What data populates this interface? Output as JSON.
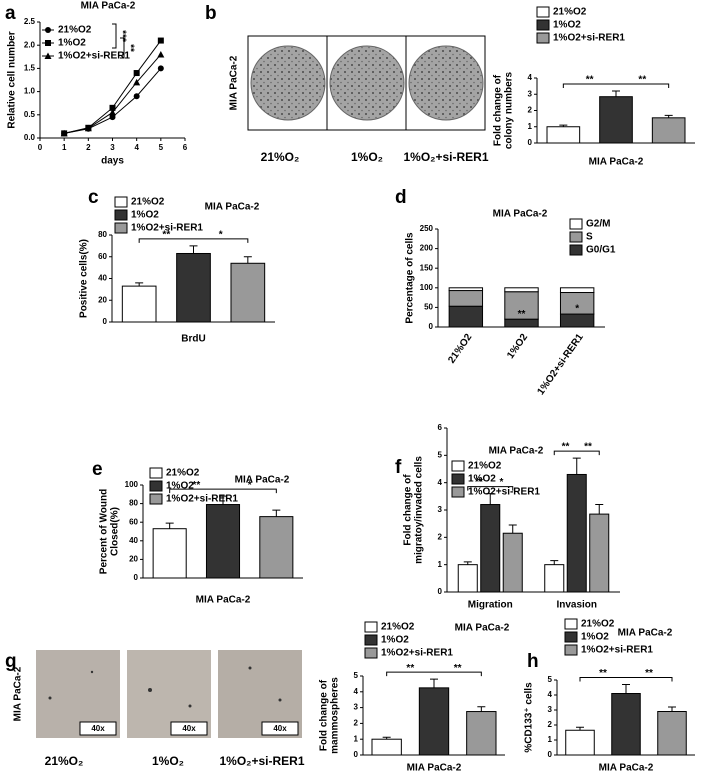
{
  "chart_data": [
    {
      "type": "line",
      "label": "a",
      "title": "MIA PaCa-2",
      "xlabel": "days",
      "ylabel": [
        "Relative cell number"
      ],
      "x": [
        1,
        2,
        3,
        4,
        5
      ],
      "series": [
        {
          "name": "21%O2",
          "marker": "circle",
          "color": "#000000",
          "values": [
            0.1,
            0.2,
            0.45,
            0.9,
            1.5
          ]
        },
        {
          "name": "1%O2",
          "marker": "square",
          "color": "#000000",
          "values": [
            0.1,
            0.22,
            0.65,
            1.4,
            2.1
          ]
        },
        {
          "name": "1%O2+si-RER1",
          "marker": "triangle",
          "color": "#000000",
          "values": [
            0.1,
            0.21,
            0.55,
            1.2,
            1.8
          ]
        }
      ],
      "xlim": [
        0,
        6
      ],
      "xticks": [
        0,
        1,
        2,
        3,
        4,
        5,
        6
      ],
      "ylim": [
        0,
        2.5
      ],
      "yticks": [
        {
          "value": 0,
          "label": "0.0"
        },
        0.5,
        {
          "value": 1,
          "label": "1.0"
        },
        1.5,
        {
          "value": 2,
          "label": "2.0"
        },
        2.5
      ],
      "annotations": [
        "***",
        "**"
      ]
    },
    {
      "type": "bar",
      "label": "b",
      "xlabel": "MIA PaCa-2",
      "ylabel": [
        "Fold change of",
        "colony numbers"
      ],
      "side_label": "MIA PaCa-2",
      "image_labels": [
        "21%O₂",
        "1%O₂",
        "1%O₂+si-RER1"
      ],
      "categories": [
        "21%O2",
        "1%O2",
        "1%O2+si-RER1"
      ],
      "colors": [
        "#ffffff",
        "#333333",
        "#999999"
      ],
      "values": [
        1,
        2.85,
        1.55
      ],
      "errors": [
        0.1,
        0.35,
        0.15
      ],
      "ylim": [
        0,
        4
      ],
      "yticks": [
        0,
        1,
        2,
        3,
        4
      ],
      "significance": [
        "**",
        "**"
      ]
    },
    {
      "type": "bar",
      "label": "c",
      "title": "MIA PaCa-2",
      "xlabel": "BrdU",
      "ylabel": [
        "Positive cells(%)"
      ],
      "categories": [
        "21%O2",
        "1%O2",
        "1%O2+si-RER1"
      ],
      "colors": [
        "#ffffff",
        "#333333",
        "#999999"
      ],
      "values": [
        33,
        63,
        54
      ],
      "errors": [
        3,
        7,
        6
      ],
      "ylim": [
        0,
        80
      ],
      "yticks": [
        0,
        20,
        40,
        60,
        80
      ],
      "significance": [
        "**",
        "*"
      ]
    },
    {
      "type": "stacked_bar",
      "label": "d",
      "title": "MIA PaCa-2",
      "ylabel": [
        "Percentage of cells"
      ],
      "categories": [
        "21%O2",
        "1%O2",
        "1%O2+si-RER1"
      ],
      "series": [
        {
          "name": "G0/G1",
          "color": "#333333",
          "values": [
            53,
            20,
            33
          ]
        },
        {
          "name": "S",
          "color": "#999999",
          "values": [
            40,
            70,
            55
          ]
        },
        {
          "name": "G2/M",
          "color": "#ffffff",
          "values": [
            7,
            10,
            12
          ]
        }
      ],
      "ylim": [
        0,
        250
      ],
      "yticks": [
        0,
        50,
        100,
        150,
        200,
        250
      ],
      "annotations": [
        "**",
        "*"
      ]
    },
    {
      "type": "bar",
      "label": "e",
      "title": "MIA PaCa-2",
      "xlabel": "MIA PaCa-2",
      "ylabel": [
        "Percent of Wound",
        "Closed(%)"
      ],
      "categories": [
        "21%O2",
        "1%O2",
        "1%O2+si-RER1"
      ],
      "colors": [
        "#ffffff",
        "#333333",
        "#999999"
      ],
      "values": [
        53,
        79,
        66
      ],
      "errors": [
        6,
        9,
        7
      ],
      "ylim": [
        0,
        100
      ],
      "yticks": [
        0,
        20,
        40,
        60,
        80,
        100
      ],
      "significance": [
        "**",
        "*"
      ]
    },
    {
      "type": "grouped_bar",
      "label": "f",
      "title": "MIA PaCa-2",
      "ylabel": [
        "Fold change of",
        "migratoy/invaded cells"
      ],
      "categories": [
        "Migration",
        "Invasion"
      ],
      "series": [
        {
          "name": "21%O2",
          "color": "#ffffff",
          "values": [
            1,
            1
          ],
          "errors": [
            0.1,
            0.15
          ]
        },
        {
          "name": "1%O2",
          "color": "#333333",
          "values": [
            3.2,
            4.3
          ],
          "errors": [
            0.4,
            0.6
          ]
        },
        {
          "name": "1%O2+si-RER1",
          "color": "#999999",
          "values": [
            2.15,
            2.85
          ],
          "errors": [
            0.3,
            0.35
          ]
        }
      ],
      "ylim": [
        0,
        6
      ],
      "yticks": [
        0,
        1,
        2,
        3,
        4,
        5,
        6
      ],
      "significance": [
        [
          "**",
          "*"
        ],
        [
          "**",
          "**"
        ]
      ]
    },
    {
      "type": "bar",
      "label": "g",
      "title": "MIA PaCa-2",
      "xlabel": "MIA PaCa-2",
      "ylabel": [
        "Fold change of",
        "mammospheres"
      ],
      "side_label": "MIA PaCa-2",
      "image_labels": [
        "21%O₂",
        "1%O₂",
        "1%O₂+si-RER1"
      ],
      "magnification": "40x",
      "categories": [
        "21%O2",
        "1%O2",
        "1%O2+si-RER1"
      ],
      "colors": [
        "#ffffff",
        "#333333",
        "#999999"
      ],
      "values": [
        1,
        4.25,
        2.75
      ],
      "errors": [
        0.12,
        0.55,
        0.3
      ],
      "ylim": [
        0,
        5
      ],
      "yticks": [
        0,
        1,
        2,
        3,
        4,
        5
      ],
      "significance": [
        "**",
        "**"
      ]
    },
    {
      "type": "bar",
      "label": "h",
      "title": "MIA PaCa-2",
      "xlabel": "MIA PaCa-2",
      "ylabel": [
        "%CD133⁺ cells"
      ],
      "categories": [
        "21%O2",
        "1%O2",
        "1%O2+si-RER1"
      ],
      "colors": [
        "#ffffff",
        "#333333",
        "#999999"
      ],
      "values": [
        1.65,
        4.1,
        2.9
      ],
      "errors": [
        0.2,
        0.6,
        0.3
      ],
      "ylim": [
        0,
        5
      ],
      "yticks": [
        0,
        1,
        2,
        3,
        4,
        5
      ],
      "significance": [
        "**",
        "**"
      ]
    }
  ]
}
